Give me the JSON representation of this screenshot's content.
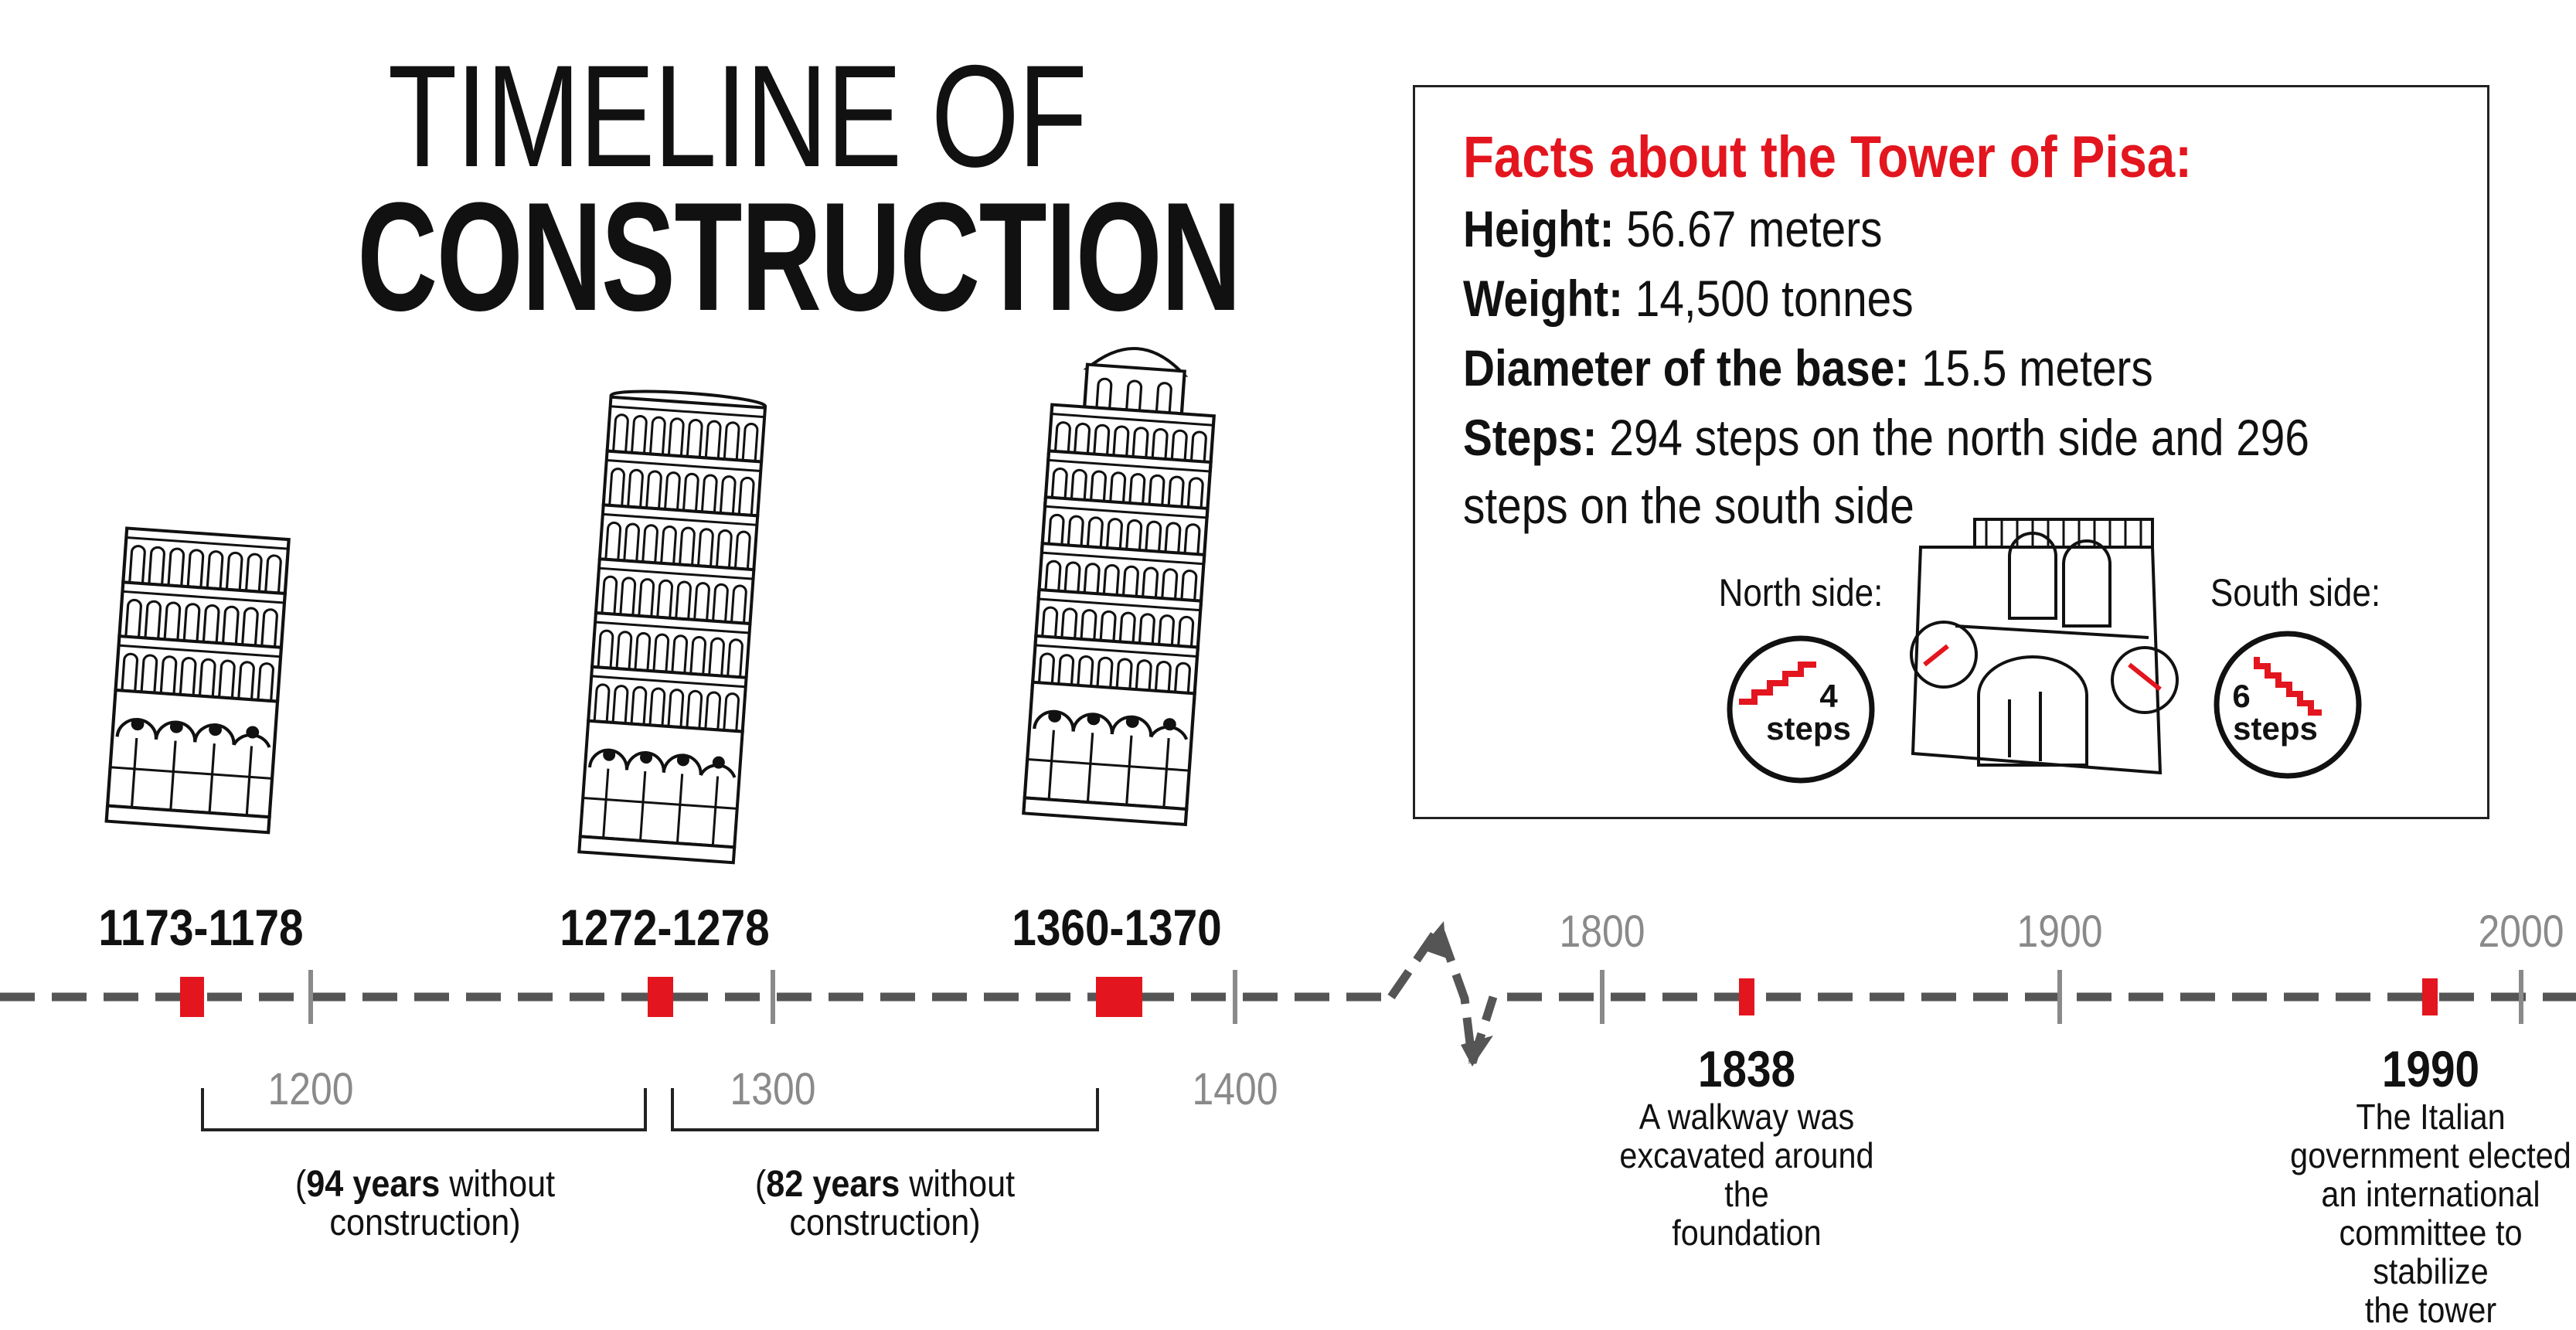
{
  "title": {
    "line1": "TIMELINE OF",
    "line2": "CONSTRUCTION"
  },
  "facts": {
    "heading": "Facts about the Tower of Pisa:",
    "height_label": "Height:",
    "height_value": " 56.67 meters",
    "weight_label": "Weight:",
    "weight_value": " 14,500 tonnes",
    "diameter_label": "Diameter of the base:",
    "diameter_value": " 15.5 meters",
    "steps_label": "Steps:",
    "steps_value_1": " 294 steps on the north side and 296",
    "steps_value_2": "steps on the south side",
    "north_label": "North side:",
    "north_steps_num": "4",
    "north_steps_word": "steps",
    "south_label": "South side:",
    "south_steps_num": "6",
    "south_steps_word": "steps"
  },
  "phases": [
    {
      "label": "1173-1178"
    },
    {
      "label": "1272-1278"
    },
    {
      "label": "1360-1370"
    }
  ],
  "ticks_left": [
    "1200",
    "1300",
    "1400"
  ],
  "ticks_right": [
    "1800",
    "1900",
    "2000"
  ],
  "gaps": [
    {
      "open": "(",
      "bold": "94 years",
      "rest": " without",
      "line2": "construction)"
    },
    {
      "open": "(",
      "bold": "82 years",
      "rest": " without",
      "line2": "construction)"
    }
  ],
  "events": [
    {
      "year": "1838",
      "lines": [
        "A walkway was",
        "excavated around the",
        "foundation"
      ]
    },
    {
      "year": "1990",
      "lines": [
        "The Italian",
        "government elected",
        "an international",
        "committee to stabilize",
        "the tower"
      ]
    }
  ],
  "colors": {
    "accent": "#e3151e",
    "timeline": "#555555",
    "tick": "#8a8a8a"
  }
}
